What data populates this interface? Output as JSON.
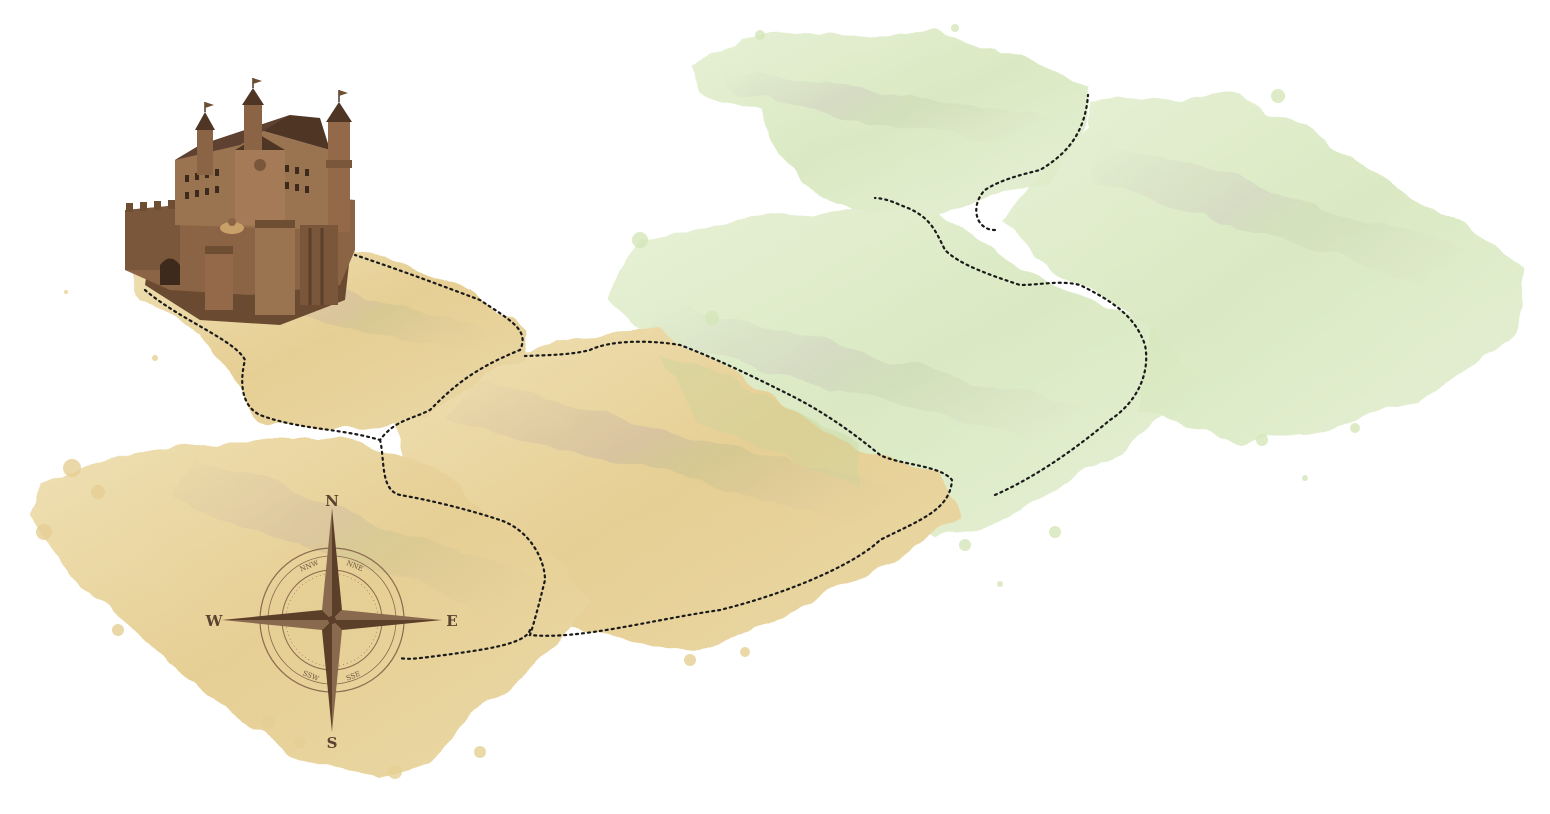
{
  "map": {
    "tiles": [
      {
        "id": "tile-start-sand",
        "kind": "sand",
        "state": "unlocked"
      },
      {
        "id": "tile-southwest-sand",
        "kind": "sand",
        "state": "unlocked"
      },
      {
        "id": "tile-central-sand",
        "kind": "sand",
        "state": "unlocked"
      },
      {
        "id": "tile-north-meadow",
        "kind": "meadow",
        "state": "faded"
      },
      {
        "id": "tile-middle-meadow",
        "kind": "meadow",
        "state": "faded"
      },
      {
        "id": "tile-east-meadow",
        "kind": "meadow",
        "state": "faded"
      }
    ],
    "landmarks": {
      "castle": {
        "icon": "castle-icon"
      },
      "compass": {
        "icon": "compass-rose-icon",
        "north": "N",
        "south": "S",
        "east": "E",
        "west": "W",
        "nne": "NNE",
        "nnw": "NNW",
        "sse": "SSE",
        "ssw": "SSW"
      }
    },
    "path": {
      "style": "dotted",
      "color": "#1a1a1a"
    },
    "colors": {
      "sand": "#e9d6a4",
      "sand_dark": "#d9bd7a",
      "meadow": "#dcebc5",
      "meadow_dark": "#c6dba6",
      "stain": "#b9a9a0",
      "castle": "#8a6444",
      "castle_dark": "#5b3f29",
      "compass": "#7a5a3e"
    }
  }
}
